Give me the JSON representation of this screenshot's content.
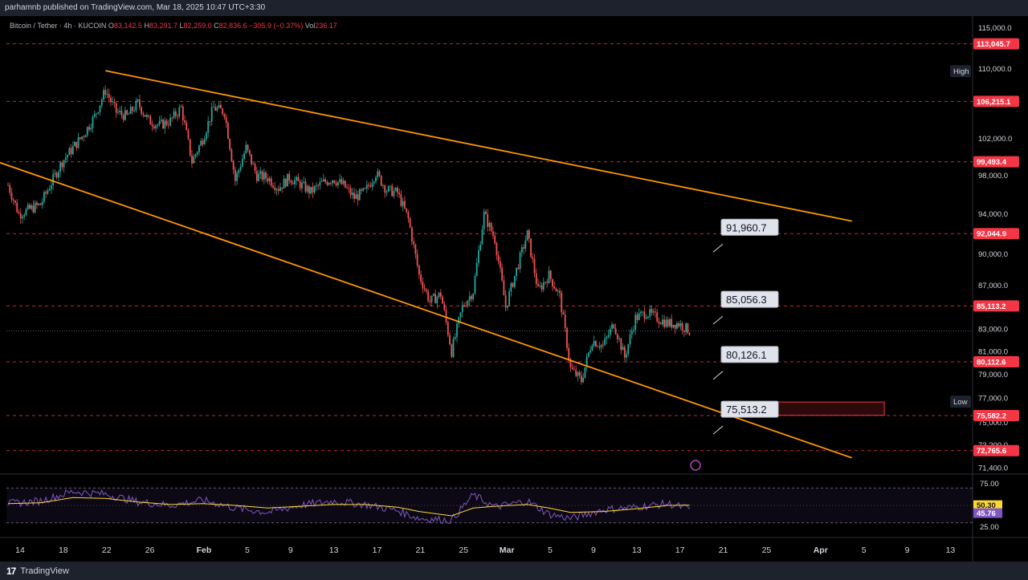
{
  "header": {
    "published": "parhamnb published on TradingView.com, Mar 18, 2025 10:47 UTC+3:30"
  },
  "legend": {
    "symbol": "Bitcoin / Tether · 4h · KUCOIN",
    "open_label": "O",
    "open": "83,142.5",
    "high_label": "H",
    "high": "83,291.7",
    "low_label": "L",
    "low": "82,259.0",
    "close_label": "C",
    "close": "82,836.6",
    "change": "−305.9 (−0.37%)",
    "vol_label": "Vol",
    "vol": "236.17"
  },
  "footer": {
    "brand": "TradingView",
    "logo_glyph": "17"
  },
  "colors": {
    "background": "#000000",
    "up": "#26a69a",
    "down": "#ef5350",
    "trendline": "#ff9800",
    "level": "#f23645",
    "rsi": "#7e57c2",
    "rsi_ma": "#fdd835"
  },
  "chart_data": [
    {
      "type": "candlestick",
      "title": "Bitcoin / Tether · 4h · KUCOIN",
      "ylim": [
        71000,
        116500
      ],
      "y_ticks": [
        "115,000.0",
        "110,000.0",
        "102,000.0",
        "98,000.0",
        "94,000.0",
        "90,000.0",
        "87,000.0",
        "83,000.0",
        "81,000.0",
        "79,000.0",
        "77,000.0",
        "75,000.0",
        "73,200.0",
        "71,400.0"
      ],
      "x_ticks": [
        "14",
        "18",
        "22",
        "26",
        "Feb",
        "5",
        "9",
        "13",
        "17",
        "21",
        "25",
        "Mar",
        "5",
        "9",
        "13",
        "17",
        "21",
        "25",
        "Apr",
        "5",
        "9",
        "13"
      ],
      "price_path": [
        [
          0,
          97000
        ],
        [
          1,
          94000
        ],
        [
          3,
          95000
        ],
        [
          5,
          99500
        ],
        [
          7,
          102500
        ],
        [
          8,
          104500
        ],
        [
          9,
          107500
        ],
        [
          10,
          105000
        ],
        [
          11,
          104500
        ],
        [
          12,
          106000
        ],
        [
          13,
          104000
        ],
        [
          14,
          103500
        ],
        [
          15,
          104000
        ],
        [
          16,
          105500
        ],
        [
          17,
          99500
        ],
        [
          18,
          102000
        ],
        [
          19,
          105500
        ],
        [
          20,
          105000
        ],
        [
          21,
          97500
        ],
        [
          22,
          101000
        ],
        [
          23,
          98000
        ],
        [
          24,
          97800
        ],
        [
          25,
          96700
        ],
        [
          26,
          97800
        ],
        [
          27,
          97100
        ],
        [
          28,
          96300
        ],
        [
          29,
          97200
        ],
        [
          30,
          97700
        ],
        [
          31,
          97000
        ],
        [
          32,
          95700
        ],
        [
          33,
          96300
        ],
        [
          34,
          98300
        ],
        [
          35,
          96500
        ],
        [
          36,
          96200
        ],
        [
          37,
          93500
        ],
        [
          38,
          88000
        ],
        [
          39,
          85500
        ],
        [
          40,
          86200
        ],
        [
          41,
          81000
        ],
        [
          42,
          85000
        ],
        [
          43,
          86500
        ],
        [
          44,
          94000
        ],
        [
          45,
          91500
        ],
        [
          46,
          85000
        ],
        [
          47,
          88500
        ],
        [
          48,
          92000
        ],
        [
          49,
          86500
        ],
        [
          50,
          88000
        ],
        [
          51,
          86000
        ],
        [
          52,
          79500
        ],
        [
          53,
          78500
        ],
        [
          54,
          82000
        ],
        [
          55,
          81500
        ],
        [
          56,
          83500
        ],
        [
          57,
          80500
        ],
        [
          58,
          84000
        ],
        [
          59,
          84500
        ],
        [
          60,
          84000
        ],
        [
          61,
          83500
        ],
        [
          62,
          83500
        ],
        [
          63,
          82837
        ]
      ],
      "levels": [
        {
          "price": 113045.7,
          "label": "113,045.7"
        },
        {
          "price": 106215.1,
          "label": "106,215.1"
        },
        {
          "price": 99493.4,
          "label": "99,493.4"
        },
        {
          "price": 92044.9,
          "label": "92,044.9"
        },
        {
          "price": 85113.2,
          "label": "85,113.2"
        },
        {
          "price": 80112.6,
          "label": "80,112.6"
        },
        {
          "price": 75582.2,
          "label": "75,582.2"
        },
        {
          "price": 72765.6,
          "label": "72,765.6"
        }
      ],
      "current_price": 82836.6,
      "callouts": [
        {
          "price": 91960.7,
          "label": "91,960.7"
        },
        {
          "price": 85056.3,
          "label": "85,056.3"
        },
        {
          "price": 80126.1,
          "label": "80,126.1"
        },
        {
          "price": 75513.2,
          "label": "75,513.2"
        }
      ],
      "marks": [
        {
          "label": "High",
          "price": 109700
        },
        {
          "label": "Low",
          "price": 76700
        }
      ],
      "trendlines": [
        {
          "from": [
            9,
            109800
          ],
          "to": [
            78,
            93300
          ]
        },
        {
          "from": [
            -1,
            99500
          ],
          "to": [
            78,
            72200
          ]
        }
      ],
      "zone": {
        "from": [
          70,
          75600
        ],
        "to": [
          81,
          76700
        ]
      }
    },
    {
      "type": "line",
      "ylim": [
        15,
        85
      ],
      "y_ticks": [
        "75.00",
        "25.00"
      ],
      "bands": [
        70,
        30
      ],
      "series": [
        {
          "values": [
            [
              0,
              52
            ],
            [
              3,
              55
            ],
            [
              6,
              66
            ],
            [
              9,
              63
            ],
            [
              12,
              54
            ],
            [
              15,
              50
            ],
            [
              18,
              56
            ],
            [
              21,
              47
            ],
            [
              24,
              42
            ],
            [
              27,
              50
            ],
            [
              30,
              55
            ],
            [
              33,
              51
            ],
            [
              36,
              44
            ],
            [
              38,
              35
            ],
            [
              41,
              33
            ],
            [
              43,
              62
            ],
            [
              45,
              48
            ],
            [
              48,
              55
            ],
            [
              50,
              40
            ],
            [
              52,
              35
            ],
            [
              55,
              45
            ],
            [
              58,
              48
            ],
            [
              61,
              52
            ],
            [
              63,
              46
            ]
          ]
        },
        {
          "values": [
            [
              0,
              52
            ],
            [
              3,
              53
            ],
            [
              6,
              59
            ],
            [
              9,
              58
            ],
            [
              12,
              54
            ],
            [
              15,
              51
            ],
            [
              18,
              52
            ],
            [
              21,
              50
            ],
            [
              24,
              47
            ],
            [
              27,
              49
            ],
            [
              30,
              51
            ],
            [
              33,
              51
            ],
            [
              36,
              48
            ],
            [
              38,
              43
            ],
            [
              41,
              38
            ],
            [
              43,
              47
            ],
            [
              45,
              49
            ],
            [
              48,
              51
            ],
            [
              50,
              47
            ],
            [
              52,
              42
            ],
            [
              55,
              43
            ],
            [
              58,
              46
            ],
            [
              61,
              50
            ],
            [
              63,
              50.3
            ]
          ]
        }
      ],
      "value_labels": [
        "50.30",
        "45.76"
      ]
    }
  ]
}
